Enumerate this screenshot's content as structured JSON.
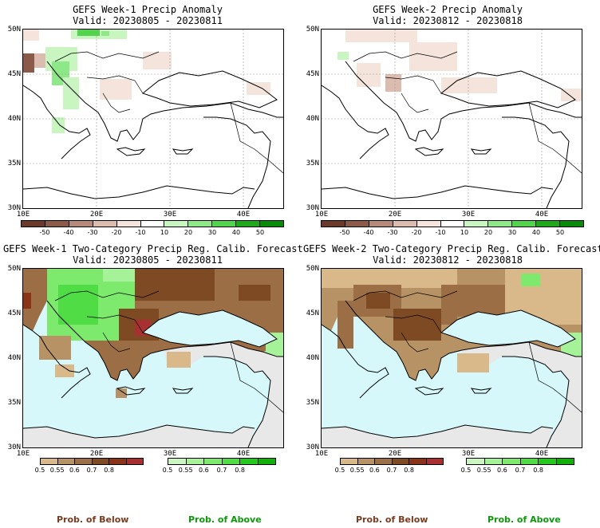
{
  "panels": [
    {
      "title": "GEFS Week-1 Precip Anomaly",
      "valid": "Valid: 20230805 - 20230811"
    },
    {
      "title": "GEFS Week-2 Precip Anomaly",
      "valid": "Valid: 20230812 - 20230818"
    },
    {
      "title": "GEFS Week-1 Two-Category Precip Reg. Calib. Forecast",
      "valid": "Valid: 20230805 - 20230811"
    },
    {
      "title": "GEFS Week-2 Two-Category Precip Reg. Calib. Forecast",
      "valid": "Valid: 20230812 - 20230818"
    }
  ],
  "lat_labels": [
    "50N",
    "45N",
    "40N",
    "35N",
    "30N"
  ],
  "lon_labels": [
    "10E",
    "20E",
    "30E",
    "40E"
  ],
  "anomaly_scale": {
    "labels": [
      "-50",
      "-40",
      "-30",
      "-20",
      "-10",
      "10",
      "20",
      "30",
      "40",
      "50"
    ],
    "colors": [
      "#6b3a2a",
      "#8b5a48",
      "#b58a78",
      "#dcbcae",
      "#f4e4dc",
      "#ffffff",
      "#c8f5c0",
      "#8ee888",
      "#52d44c",
      "#1ea81a",
      "#0a8a0a"
    ]
  },
  "prob_below_scale": {
    "labels": [
      "0.5",
      "0.55",
      "0.6",
      "0.7",
      "0.8"
    ],
    "colors": [
      "#d9b989",
      "#b79265",
      "#9b6e45",
      "#7d4a24",
      "#8b3318",
      "#a83030"
    ]
  },
  "prob_above_scale": {
    "labels": [
      "0.5",
      "0.55",
      "0.6",
      "0.7",
      "0.8"
    ],
    "colors": [
      "#c9f7bf",
      "#a6f298",
      "#7dea6d",
      "#4fdc44",
      "#25c81c",
      "#10b008"
    ]
  },
  "footer": {
    "below": "Prob. of Below",
    "above": "Prob. of Above"
  },
  "colors": {
    "sea": "#d6f8fb",
    "nodata": "#e8e8e8"
  }
}
